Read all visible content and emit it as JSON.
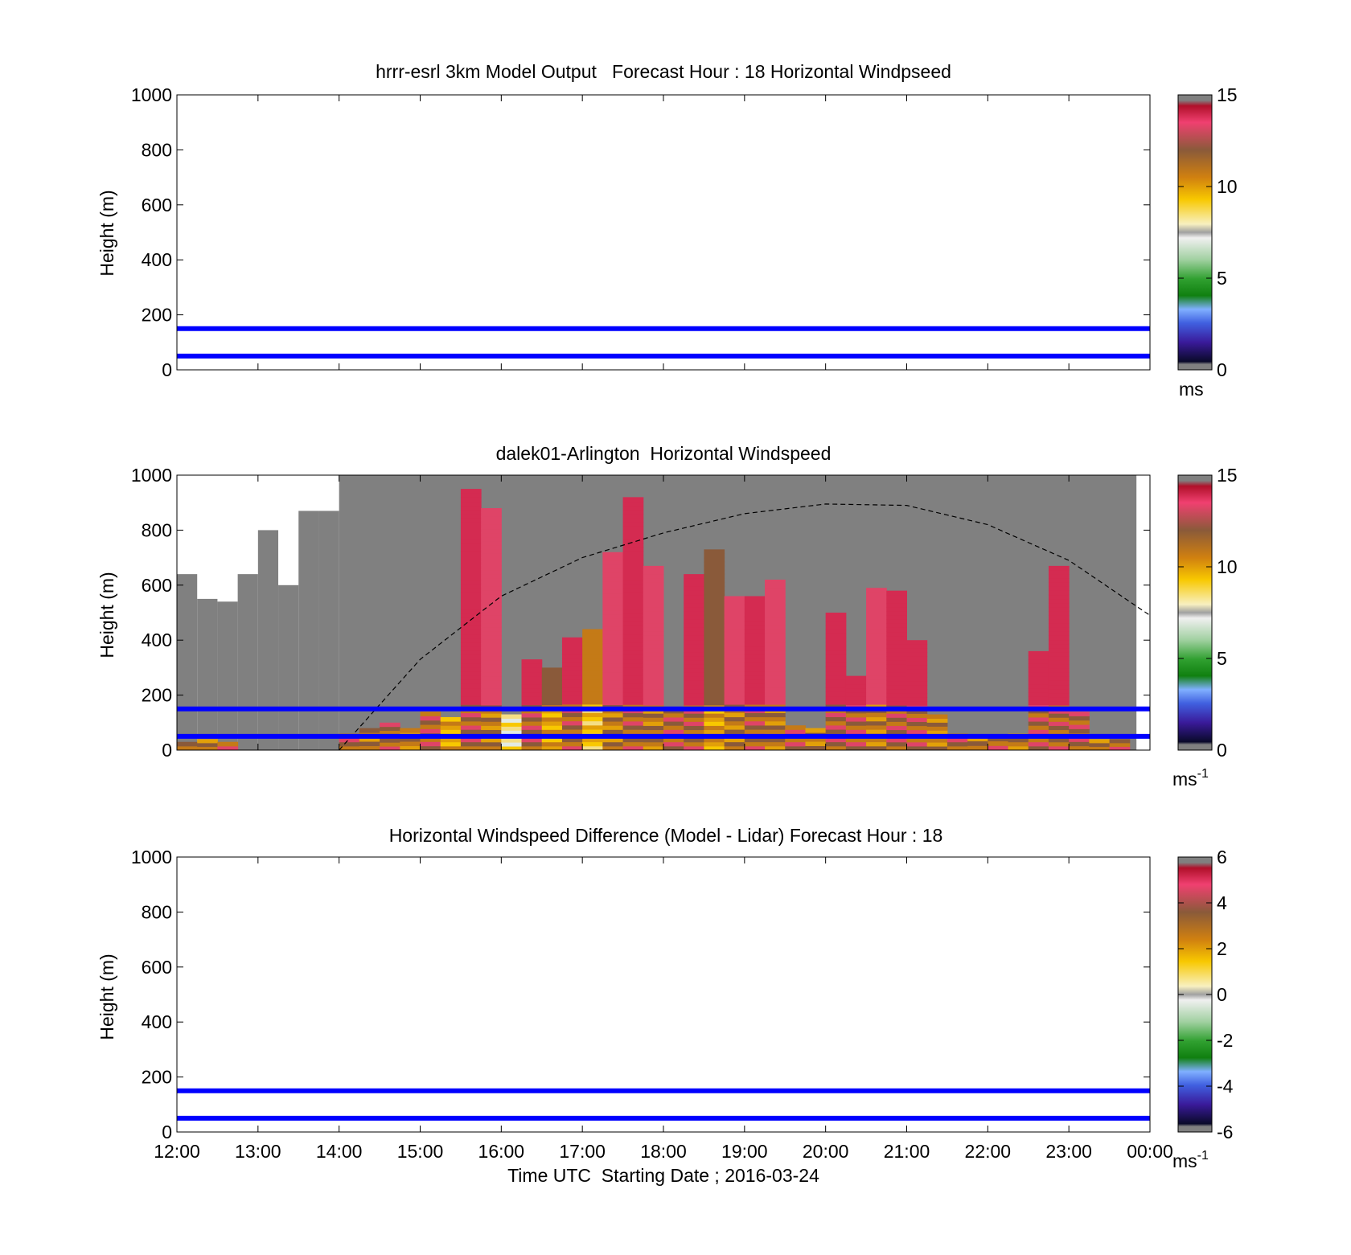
{
  "figure": {
    "xlabel": "Time UTC  Starting Date ; 2016-03-24",
    "x_ticks": [
      "12:00",
      "13:00",
      "14:00",
      "15:00",
      "16:00",
      "17:00",
      "18:00",
      "19:00",
      "20:00",
      "21:00",
      "22:00",
      "23:00",
      "00:00"
    ]
  },
  "chart_data": [
    {
      "type": "heatmap",
      "title": "hrrr-esrl 3km Model Output   Forecast Hour : 18 Horizontal Windpseed",
      "xlabel": "",
      "ylabel": "Height (m)",
      "x_range": [
        "12:00",
        "00:00"
      ],
      "ylim": [
        0,
        1000
      ],
      "y_ticks": [
        0,
        200,
        400,
        600,
        800,
        1000
      ],
      "reference_lines_m": [
        50,
        150
      ],
      "reference_line_color": "#0000ff",
      "colorbar": {
        "min": 0,
        "max": 15,
        "ticks": [
          0,
          5,
          10,
          15
        ],
        "unit": "ms",
        "unit_sup": ""
      },
      "cells": []
    },
    {
      "type": "heatmap",
      "title": "dalek01-Arlington  Horizontal Windspeed",
      "xlabel": "",
      "ylabel": "Height (m)",
      "x_range": [
        "12:00",
        "00:00"
      ],
      "ylim": [
        0,
        1000
      ],
      "y_ticks": [
        0,
        200,
        400,
        600,
        800,
        1000
      ],
      "reference_lines_m": [
        50,
        150
      ],
      "reference_line_color": "#0000ff",
      "colorbar": {
        "min": 0,
        "max": 15,
        "ticks": [
          0,
          5,
          10,
          15
        ],
        "unit": "ms",
        "unit_sup": "-1"
      },
      "no_data_color": "#808080",
      "gray_coverage": [
        {
          "start": "12:00",
          "end": "12:15",
          "top_m": 640
        },
        {
          "start": "12:15",
          "end": "12:30",
          "top_m": 550
        },
        {
          "start": "12:30",
          "end": "12:45",
          "top_m": 540
        },
        {
          "start": "12:45",
          "end": "13:00",
          "top_m": 640
        },
        {
          "start": "13:00",
          "end": "13:15",
          "top_m": 800
        },
        {
          "start": "13:15",
          "end": "13:30",
          "top_m": 600
        },
        {
          "start": "13:30",
          "end": "13:45",
          "top_m": 870
        },
        {
          "start": "13:45",
          "end": "14:00",
          "top_m": 870
        },
        {
          "start": "14:00",
          "end": "23:50",
          "top_m": 1000
        }
      ],
      "sunrise_sunset_curve": {
        "style": "dashed",
        "points": [
          [
            "14:00",
            0
          ],
          [
            "15:00",
            330
          ],
          [
            "16:00",
            560
          ],
          [
            "17:00",
            700
          ],
          [
            "18:00",
            790
          ],
          [
            "19:00",
            860
          ],
          [
            "20:00",
            895
          ],
          [
            "21:00",
            890
          ],
          [
            "22:00",
            820
          ],
          [
            "23:00",
            690
          ],
          [
            "00:00",
            490
          ]
        ]
      },
      "cells": [
        {
          "t": "12:00",
          "h_min": 0,
          "h_max": 30,
          "v": 14
        },
        {
          "t": "12:15",
          "h_min": 0,
          "h_max": 40,
          "v": 13
        },
        {
          "t": "12:30",
          "h_min": 0,
          "h_max": 30,
          "v": 14
        },
        {
          "t": "14:00",
          "h_min": 0,
          "h_max": 60,
          "v": 14
        },
        {
          "t": "14:15",
          "h_min": 0,
          "h_max": 80,
          "v": 13
        },
        {
          "t": "14:30",
          "h_min": 0,
          "h_max": 100,
          "v": 14
        },
        {
          "t": "14:45",
          "h_min": 0,
          "h_max": 80,
          "v": 13
        },
        {
          "t": "15:00",
          "h_min": 0,
          "h_max": 140,
          "v": 14
        },
        {
          "t": "15:15",
          "h_min": 0,
          "h_max": 120,
          "v": 12
        },
        {
          "t": "15:30",
          "h_min": 0,
          "h_max": 950,
          "v": 14
        },
        {
          "t": "15:45",
          "h_min": 0,
          "h_max": 880,
          "v": 13
        },
        {
          "t": "16:00",
          "h_min": 0,
          "h_max": 130,
          "v": 10
        },
        {
          "t": "16:15",
          "h_min": 0,
          "h_max": 330,
          "v": 14
        },
        {
          "t": "16:30",
          "h_min": 0,
          "h_max": 300,
          "v": 12
        },
        {
          "t": "16:45",
          "h_min": 0,
          "h_max": 410,
          "v": 14
        },
        {
          "t": "17:00",
          "h_min": 0,
          "h_max": 440,
          "v": 11
        },
        {
          "t": "17:15",
          "h_min": 0,
          "h_max": 720,
          "v": 13
        },
        {
          "t": "17:30",
          "h_min": 0,
          "h_max": 920,
          "v": 14
        },
        {
          "t": "17:45",
          "h_min": 0,
          "h_max": 670,
          "v": 13
        },
        {
          "t": "18:00",
          "h_min": 0,
          "h_max": 150,
          "v": 14
        },
        {
          "t": "18:15",
          "h_min": 0,
          "h_max": 640,
          "v": 14
        },
        {
          "t": "18:30",
          "h_min": 0,
          "h_max": 730,
          "v": 12
        },
        {
          "t": "18:45",
          "h_min": 0,
          "h_max": 560,
          "v": 13
        },
        {
          "t": "19:00",
          "h_min": 0,
          "h_max": 560,
          "v": 14
        },
        {
          "t": "19:15",
          "h_min": 0,
          "h_max": 620,
          "v": 13
        },
        {
          "t": "19:30",
          "h_min": 0,
          "h_max": 90,
          "v": 14
        },
        {
          "t": "19:45",
          "h_min": 0,
          "h_max": 80,
          "v": 13
        },
        {
          "t": "20:00",
          "h_min": 0,
          "h_max": 500,
          "v": 14
        },
        {
          "t": "20:15",
          "h_min": 0,
          "h_max": 270,
          "v": 14
        },
        {
          "t": "20:30",
          "h_min": 0,
          "h_max": 590,
          "v": 13
        },
        {
          "t": "20:45",
          "h_min": 0,
          "h_max": 580,
          "v": 14
        },
        {
          "t": "21:00",
          "h_min": 0,
          "h_max": 400,
          "v": 14
        },
        {
          "t": "21:15",
          "h_min": 0,
          "h_max": 130,
          "v": 13
        },
        {
          "t": "21:30",
          "h_min": 0,
          "h_max": 60,
          "v": 14
        },
        {
          "t": "21:45",
          "h_min": 0,
          "h_max": 50,
          "v": 13
        },
        {
          "t": "22:00",
          "h_min": 0,
          "h_max": 50,
          "v": 14
        },
        {
          "t": "22:15",
          "h_min": 0,
          "h_max": 60,
          "v": 13
        },
        {
          "t": "22:30",
          "h_min": 0,
          "h_max": 360,
          "v": 14
        },
        {
          "t": "22:45",
          "h_min": 0,
          "h_max": 670,
          "v": 14
        },
        {
          "t": "23:00",
          "h_min": 0,
          "h_max": 140,
          "v": 14
        },
        {
          "t": "23:15",
          "h_min": 0,
          "h_max": 40,
          "v": 13
        },
        {
          "t": "23:30",
          "h_min": 0,
          "h_max": 40,
          "v": 14
        }
      ]
    },
    {
      "type": "heatmap",
      "title": "Horizontal Windspeed Difference (Model - Lidar) Forecast Hour : 18",
      "xlabel": "Time UTC  Starting Date ; 2016-03-24",
      "ylabel": "Height (m)",
      "x_range": [
        "12:00",
        "00:00"
      ],
      "ylim": [
        0,
        1000
      ],
      "y_ticks": [
        0,
        200,
        400,
        600,
        800,
        1000
      ],
      "reference_lines_m": [
        50,
        150
      ],
      "reference_line_color": "#0000ff",
      "colorbar": {
        "min": -6,
        "max": 6,
        "ticks": [
          -6,
          -4,
          -2,
          0,
          2,
          4,
          6
        ],
        "unit": "ms",
        "unit_sup": "-1"
      },
      "cells": []
    }
  ]
}
